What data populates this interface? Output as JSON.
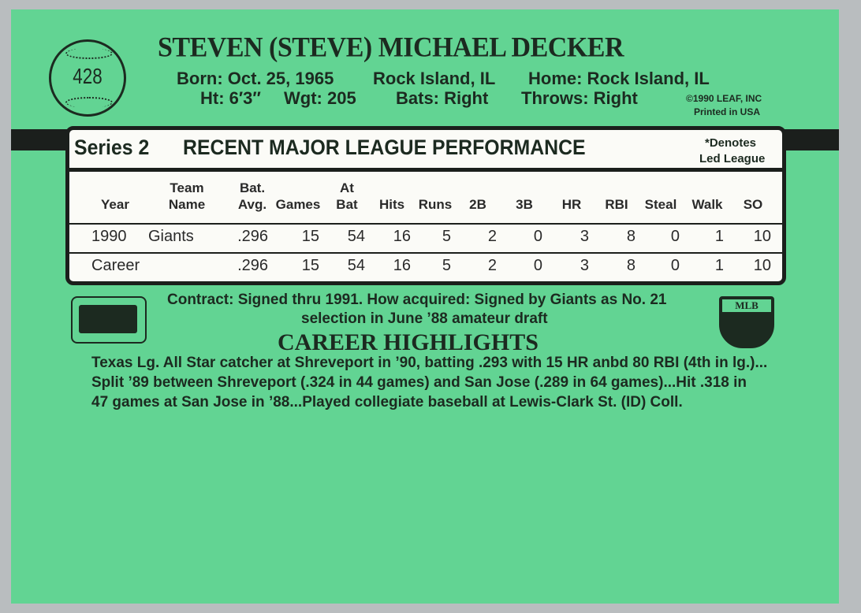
{
  "card_number": "428",
  "player_name": "STEVEN (STEVE) MICHAEL DECKER",
  "bio": {
    "born": "Born: Oct. 25, 1965",
    "birthplace": "Rock Island, IL",
    "home": "Home: Rock Island, IL",
    "height": "Ht: 6′3″",
    "weight": "Wgt: 205",
    "bats": "Bats: Right",
    "throws": "Throws: Right"
  },
  "copyright": "©1990 LEAF, INC",
  "printed": "Printed in USA",
  "stats": {
    "series": "Series 2",
    "title": "RECENT MAJOR LEAGUE PERFORMANCE",
    "note1": "*Denotes",
    "note2": "Led League",
    "headers": [
      [
        "",
        "Year"
      ],
      [
        "Team",
        "Name"
      ],
      [
        "Bat.",
        "Avg."
      ],
      [
        "",
        "Games"
      ],
      [
        "At",
        "Bat"
      ],
      [
        "",
        "Hits"
      ],
      [
        "",
        "Runs"
      ],
      [
        "",
        "2B"
      ],
      [
        "",
        "3B"
      ],
      [
        "",
        "HR"
      ],
      [
        "",
        "RBI"
      ],
      [
        "",
        "Steal"
      ],
      [
        "",
        "Walk"
      ],
      [
        "",
        "SO"
      ]
    ],
    "rows": [
      [
        "1990",
        "Giants",
        ".296",
        "15",
        "54",
        "16",
        "5",
        "2",
        "0",
        "3",
        "8",
        "0",
        "1",
        "10"
      ],
      [
        "Career",
        "",
        ".296",
        "15",
        "54",
        "16",
        "5",
        "2",
        "0",
        "3",
        "8",
        "0",
        "1",
        "10"
      ]
    ]
  },
  "contract_line1": "Contract: Signed thru 1991. How acquired: Signed by Giants as No. 21",
  "contract_line2": "selection in June ’88 amateur draft",
  "highlights_title": "CAREER HIGHLIGHTS",
  "highlights": [
    "Texas Lg. All Star catcher at Shreveport in ’90, batting .293 with 15 HR anbd 80 RBI (4th in lg.)...",
    "Split ’89 between Shreveport (.324 in 44 games) and San Jose (.289 in 64 games)...Hit .318 in",
    "47 games at San Jose in ’88...Played collegiate baseball at Lewis-Clark St. (ID) Coll."
  ],
  "logos": {
    "left": "official-licensee-mlb-logo",
    "right": "MLB"
  },
  "colors": {
    "card": "#62d493",
    "ink": "#1c2a20",
    "panel": "#fbfbf7"
  }
}
